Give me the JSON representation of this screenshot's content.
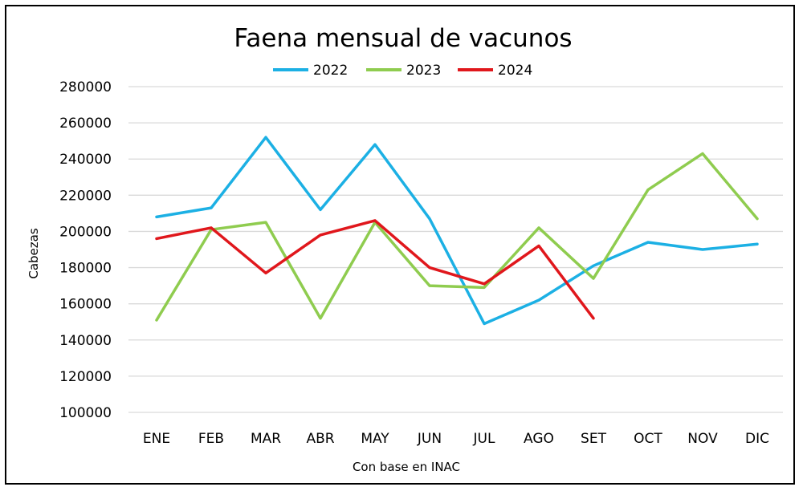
{
  "chart_data": {
    "type": "line",
    "title": "Faena mensual de vacunos",
    "xlabel": "Con base en INAC",
    "ylabel": "Cabezas",
    "ylim": [
      100000,
      280000
    ],
    "yticks": [
      "280000",
      "260000",
      "240000",
      "220000",
      "200000",
      "180000",
      "160000",
      "140000",
      "120000",
      "100000"
    ],
    "categories": [
      "ENE",
      "FEB",
      "MAR",
      "ABR",
      "MAY",
      "JUN",
      "JUL",
      "AGO",
      "SET",
      "OCT",
      "NOV",
      "DIC"
    ],
    "grid": true,
    "legend_position": "top",
    "series": [
      {
        "name": "2022",
        "color": "#1cb0e4",
        "values": [
          208000,
          213000,
          252000,
          212000,
          248000,
          207000,
          149000,
          162000,
          181000,
          194000,
          190000,
          193000
        ]
      },
      {
        "name": "2023",
        "color": "#8fcc4f",
        "values": [
          151000,
          201000,
          205000,
          152000,
          205000,
          170000,
          169000,
          202000,
          174000,
          223000,
          243000,
          207000
        ]
      },
      {
        "name": "2024",
        "color": "#e0171c",
        "values": [
          196000,
          202000,
          177000,
          198000,
          206000,
          180000,
          171000,
          192000,
          152000,
          null,
          null,
          null
        ]
      }
    ]
  }
}
